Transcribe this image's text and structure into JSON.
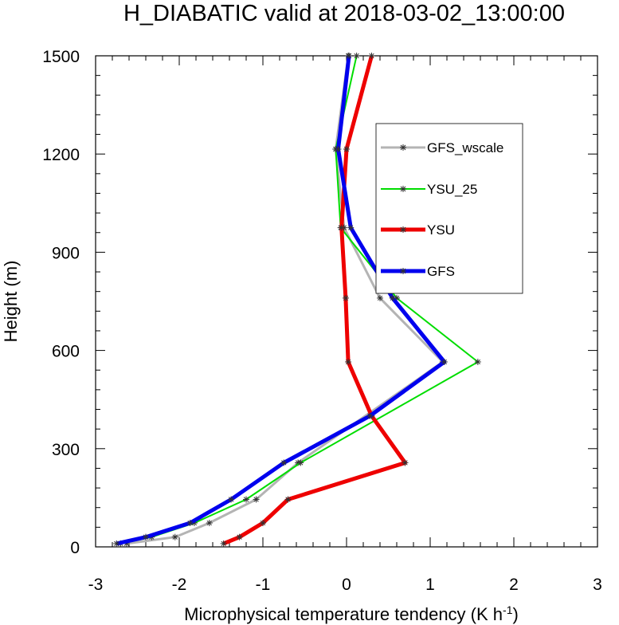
{
  "chart_data": {
    "type": "line",
    "title": "H_DIABATIC valid at 2018-03-02_13:00:00",
    "xlabel": "Microphysical temperature tendency (K h",
    "xlabel_sup": "-1",
    "xlabel_tail": ")",
    "ylabel": "Height (m)",
    "xlim": [
      -3,
      3
    ],
    "ylim": [
      0,
      1500
    ],
    "x_ticks": [
      -3,
      -2,
      -1,
      0,
      1,
      2,
      3
    ],
    "x_tick_labels": [
      "-3",
      "-2",
      "-1",
      "0",
      "1",
      "2",
      "3"
    ],
    "y_ticks": [
      0,
      300,
      600,
      900,
      1200,
      1500
    ],
    "y_tick_labels": [
      "0",
      "300",
      "600",
      "900",
      "1200",
      "1500"
    ],
    "grid": false,
    "legend_position": "upper-right",
    "series": [
      {
        "name": "GFS_wscale",
        "color": "#b4b4b4",
        "x": [
          -2.63,
          -2.05,
          -1.64,
          -1.08,
          -0.58,
          1.15,
          0.4,
          -0.03,
          -0.13,
          0.02
        ],
        "y": [
          10,
          30,
          73,
          145,
          257,
          565,
          760,
          975,
          1215,
          1500
        ]
      },
      {
        "name": "YSU_25",
        "color": "#00dd00",
        "x": [
          -2.7,
          -2.33,
          -1.82,
          -1.2,
          -0.55,
          1.57,
          0.6,
          -0.07,
          -0.13,
          0.12
        ],
        "y": [
          10,
          30,
          73,
          145,
          257,
          565,
          760,
          975,
          1215,
          1500
        ]
      },
      {
        "name": "YSU",
        "color": "#ee0000",
        "x": [
          -1.47,
          -1.28,
          -1.0,
          -0.7,
          0.7,
          0.3,
          0.02,
          -0.01,
          -0.06,
          0.0,
          0.3
        ],
        "y": [
          10,
          30,
          73,
          145,
          257,
          400,
          565,
          760,
          975,
          1215,
          1500
        ]
      },
      {
        "name": "GFS",
        "color": "#0000ee",
        "x": [
          -2.75,
          -2.4,
          -1.87,
          -1.38,
          -0.75,
          0.28,
          1.17,
          0.55,
          0.05,
          -0.1,
          0.03
        ],
        "y": [
          10,
          30,
          73,
          145,
          257,
          400,
          565,
          760,
          975,
          1215,
          1500
        ]
      }
    ]
  }
}
